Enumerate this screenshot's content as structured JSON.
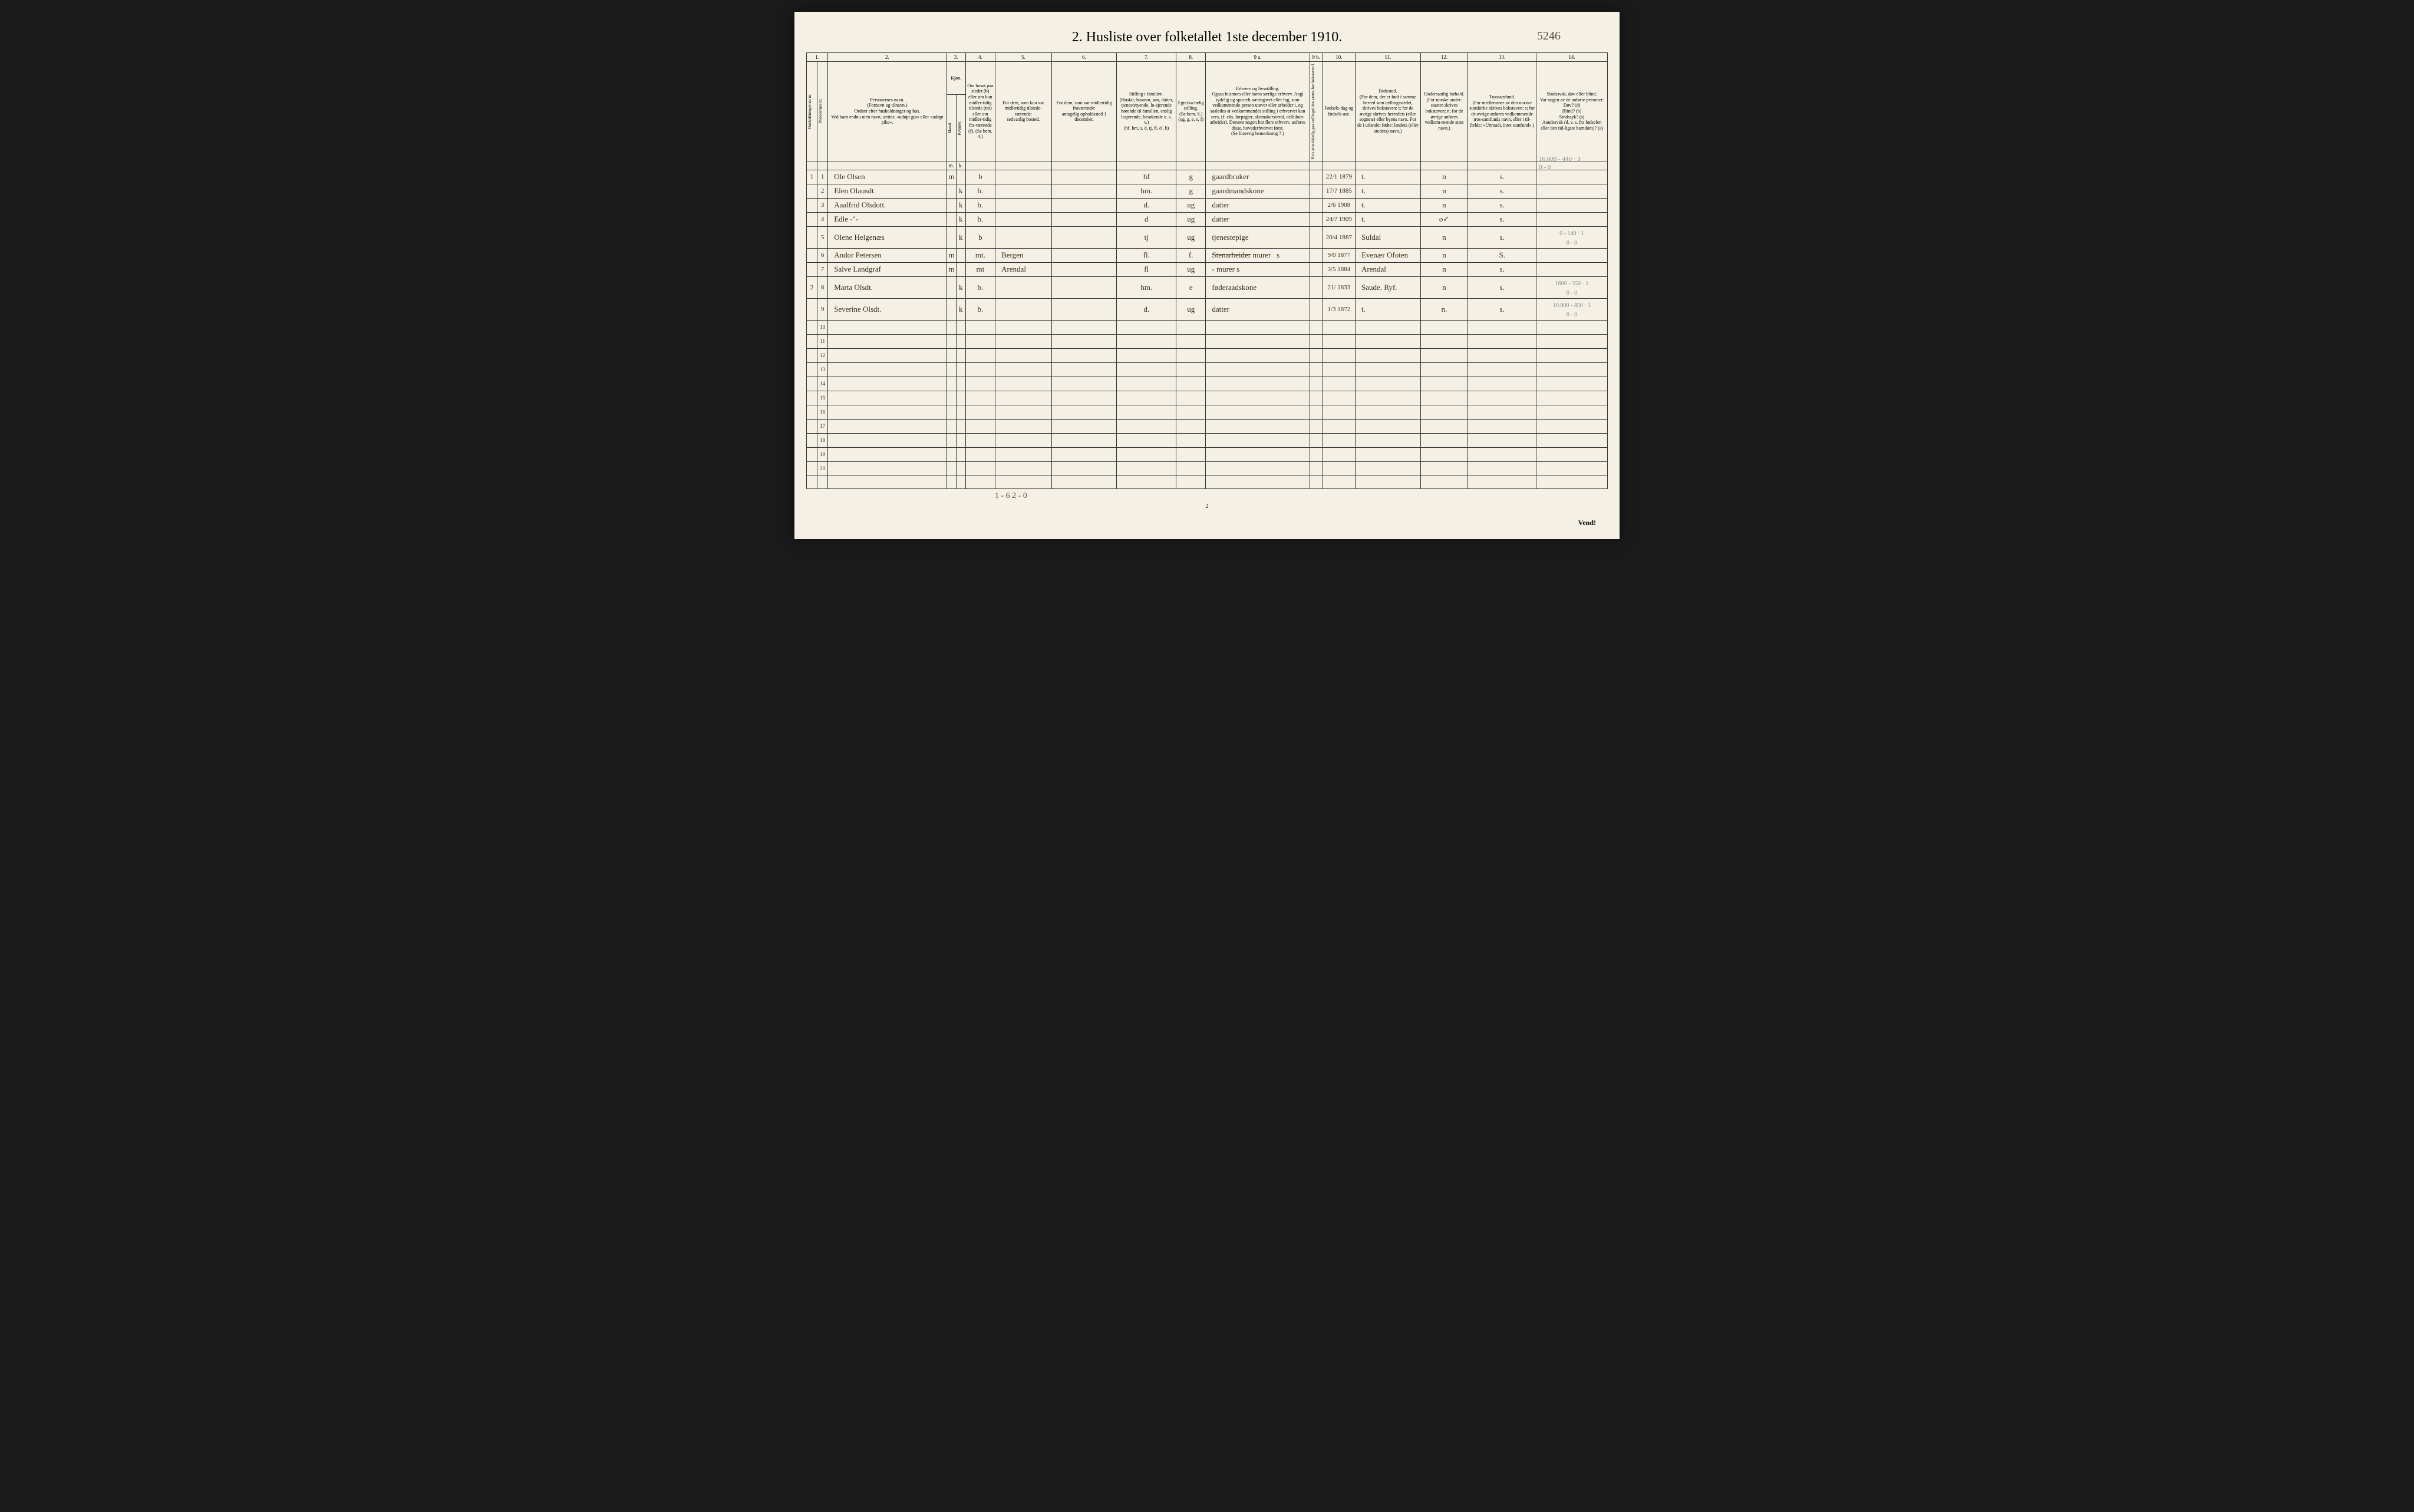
{
  "title": "2.  Husliste over folketallet 1ste december 1910.",
  "page_annotation": "5246",
  "column_numbers": [
    "1.",
    "2.",
    "3.",
    "4.",
    "5.",
    "6.",
    "7.",
    "8.",
    "9 a.",
    "9 b.",
    "10.",
    "11.",
    "12.",
    "13.",
    "14."
  ],
  "headers": {
    "c1a": "Husholdningernes nr.",
    "c1b": "Personernes nr.",
    "c2": "Personernes navn.\n(Fornavn og tilnavn.)\nOrdnet efter husholdninger og hus.\nVed barn endnu uten navn, sættes: «udøpt gut» eller «udøpt pike».",
    "c3_top": "Kjøn.",
    "c3a": "Mænd.",
    "c3b": "Kvinder.",
    "c4": "Om bosat paa stedet (b) eller om kun midler-tidig tilstede (mt) eller om midler-tidig fra-værende (f). (Se bem. 4.)",
    "c5": "For dem, som kun var midlertidig tilstede-værende:\nsedvanlig bosted.",
    "c6": "For dem, som var midlertidig fraværende:\nantagelig opholdssted 1 december.",
    "c7": "Stilling i familien.\n(Husfar, husmor, søn, datter, tjenestetyende, lo-sjerende hørende til familien, enslig losjerende, besøkende o. s. v.)\n(hf, hm, s, d, tj, fl, el, b)",
    "c8": "Egteska-belig stilling.\n(Se bem. 6.)\n(ug, g, e, s, f)",
    "c9a": "Erhverv og livsstilling.\nOgsaa husmors eller barns særlige erhverv. Angi tydelig og specielt næringsvei eller fag, som vedkommende person utøver eller arbeider i, og saaledes at vedkommendes stilling i erhvervet kan sees, (f. eks. forpagter, skomakersvend, celluloer-arbeider). Dersom nogen har flere erhverv, anføres disse, hovederhvervet først.\n(Se forøvrig bemerkning 7.)",
    "c9b": "Hvis arbeidsledig paa tællingstiden sættes her bokstaven l.",
    "c10": "Fødsels-dag og fødsels-aar.",
    "c11": "Fødested.\n(For dem, der er født i samme herred som tællingsstedet, skrives bokstaven: t; for de øvrige skrives herredets (eller sognets) eller byens navn. For de i utlandet fødte: landets (eller stedets) navn.)",
    "c12": "Undersaatlig forhold.\n(For norske under-saatter skrives bokstaven: n; for de øvrige anføres vedkom-mende stats navn.)",
    "c13": "Trossamfund.\n(For medlemmer av den norske statskirke skrives bokstaven: s; for de øvrige anføres vedkommende tros-samfunds navn, eller i til-fælde: «Uttraadt, intet samfund».)",
    "c14": "Sindssvak, døv eller blind.\nVar nogen av de anførte personer:\nDøv? (d)\nBlind? (b)\nSindssyk? (s)\nAandssvak (d. v. s. fra fødselen eller den tid-ligste barndom)? (a)"
  },
  "column_widths": {
    "c1a": 18,
    "c1b": 18,
    "c2": 200,
    "c3a": 16,
    "c3b": 16,
    "c4": 50,
    "c5": 95,
    "c6": 110,
    "c7": 100,
    "c8": 50,
    "c9a": 175,
    "c9b": 22,
    "c10": 55,
    "c11": 110,
    "c12": 80,
    "c13": 115,
    "c14": 120
  },
  "pencil_header_note": "16.600 - 440 · 3\n0 - 0",
  "rows": [
    {
      "hh": "1",
      "pn": "1",
      "name": "Ole Olsen",
      "m": "m",
      "k": "",
      "res": "b",
      "c5": "",
      "c6": "",
      "fam": "hf",
      "marital": "g",
      "occ": "gaardbruker",
      "c9b": "",
      "birth": "22/1 1879",
      "place": "t.",
      "nat": "n",
      "rel": "s.",
      "c14": ""
    },
    {
      "hh": "",
      "pn": "2",
      "name": "Elen Olausdt.",
      "m": "",
      "k": "k",
      "res": "b.",
      "c5": "",
      "c6": "",
      "fam": "hm.",
      "marital": "g",
      "occ": "gaardmandskone",
      "c9b": "",
      "birth": "17/? 1885",
      "place": "t.",
      "nat": "n",
      "rel": "s.",
      "c14": ""
    },
    {
      "hh": "",
      "pn": "3",
      "name": "Aaalfrid Olsdott.",
      "m": "",
      "k": "k",
      "res": "b.",
      "c5": "",
      "c6": "",
      "fam": "d.",
      "marital": "ug",
      "occ": "datter",
      "c9b": "",
      "birth": "2/6 1908",
      "place": "t.",
      "nat": "n",
      "rel": "s.",
      "c14": ""
    },
    {
      "hh": "",
      "pn": "4",
      "name": "Edle    -\"-",
      "m": "",
      "k": "k",
      "res": "b.",
      "c5": "",
      "c6": "",
      "fam": "d",
      "marital": "ug",
      "occ": "datter",
      "c9b": "",
      "birth": "24/? 1909",
      "place": "t.",
      "nat": "o✓",
      "rel": "s.",
      "c14": ""
    },
    {
      "hh": "",
      "pn": "5",
      "name": "Olene Helgenæs",
      "m": "",
      "k": "k",
      "res": "b",
      "c5": "",
      "c6": "",
      "fam": "tj",
      "marital": "ug",
      "occ": "tjenestepige",
      "c9b": "",
      "birth": "20/4 1887",
      "place": "Suldal",
      "nat": "n",
      "rel": "s.",
      "c14": "0 - 140 · 1\n0 - 0"
    },
    {
      "hh": "",
      "pn": "6",
      "name": "Andor Petersen",
      "m": "m",
      "k": "",
      "res": "mt.",
      "c5": "Bergen",
      "c6": "",
      "fam": "fl.",
      "marital": "f.",
      "occ": "Stenarbeider  murer  s",
      "c9b": "",
      "birth": "9/0 1877",
      "place": "Evenær Ofoten",
      "nat": "n",
      "rel": "S.",
      "c14": ""
    },
    {
      "hh": "",
      "pn": "7",
      "name": "Salve Landgraf",
      "m": "m",
      "k": "",
      "res": "mt",
      "c5": "Arendal",
      "c6": "",
      "fam": "fl",
      "marital": "ug",
      "occ": "-  murer  s",
      "c9b": "",
      "birth": "3/5 1884",
      "place": "Arendal",
      "nat": "n",
      "rel": "s.",
      "c14": ""
    },
    {
      "hh": "2",
      "pn": "8",
      "name": "Marta Olsdt.",
      "m": "",
      "k": "k",
      "res": "b.",
      "c5": "",
      "c6": "",
      "fam": "hm.",
      "marital": "e",
      "occ": "føderaadskone",
      "c9b": "",
      "birth": "21/ 1833",
      "place": "Saude. Ryf.",
      "nat": "n",
      "rel": "s.",
      "c14": "1600 - 350 · 1\n0 - 0"
    },
    {
      "hh": "",
      "pn": "9",
      "name": "Severine Olsdt.",
      "m": "",
      "k": "k",
      "res": "b.",
      "c5": "",
      "c6": "",
      "fam": "d.",
      "marital": "ug",
      "occ": "datter",
      "c9b": "",
      "birth": "1/3 1872",
      "place": "t.",
      "nat": "n.",
      "rel": "s.",
      "c14": "10.800 - 450 · 1\n0 - 0"
    }
  ],
  "empty_row_numbers": [
    "10",
    "11",
    "12",
    "13",
    "14",
    "15",
    "16",
    "17",
    "18",
    "19",
    "20"
  ],
  "bottom_tally": "1 - 6      2 - 0",
  "page_num_bottom": "2",
  "vend": "Vend!",
  "m_k_labels": {
    "m": "m.",
    "k": "k."
  }
}
